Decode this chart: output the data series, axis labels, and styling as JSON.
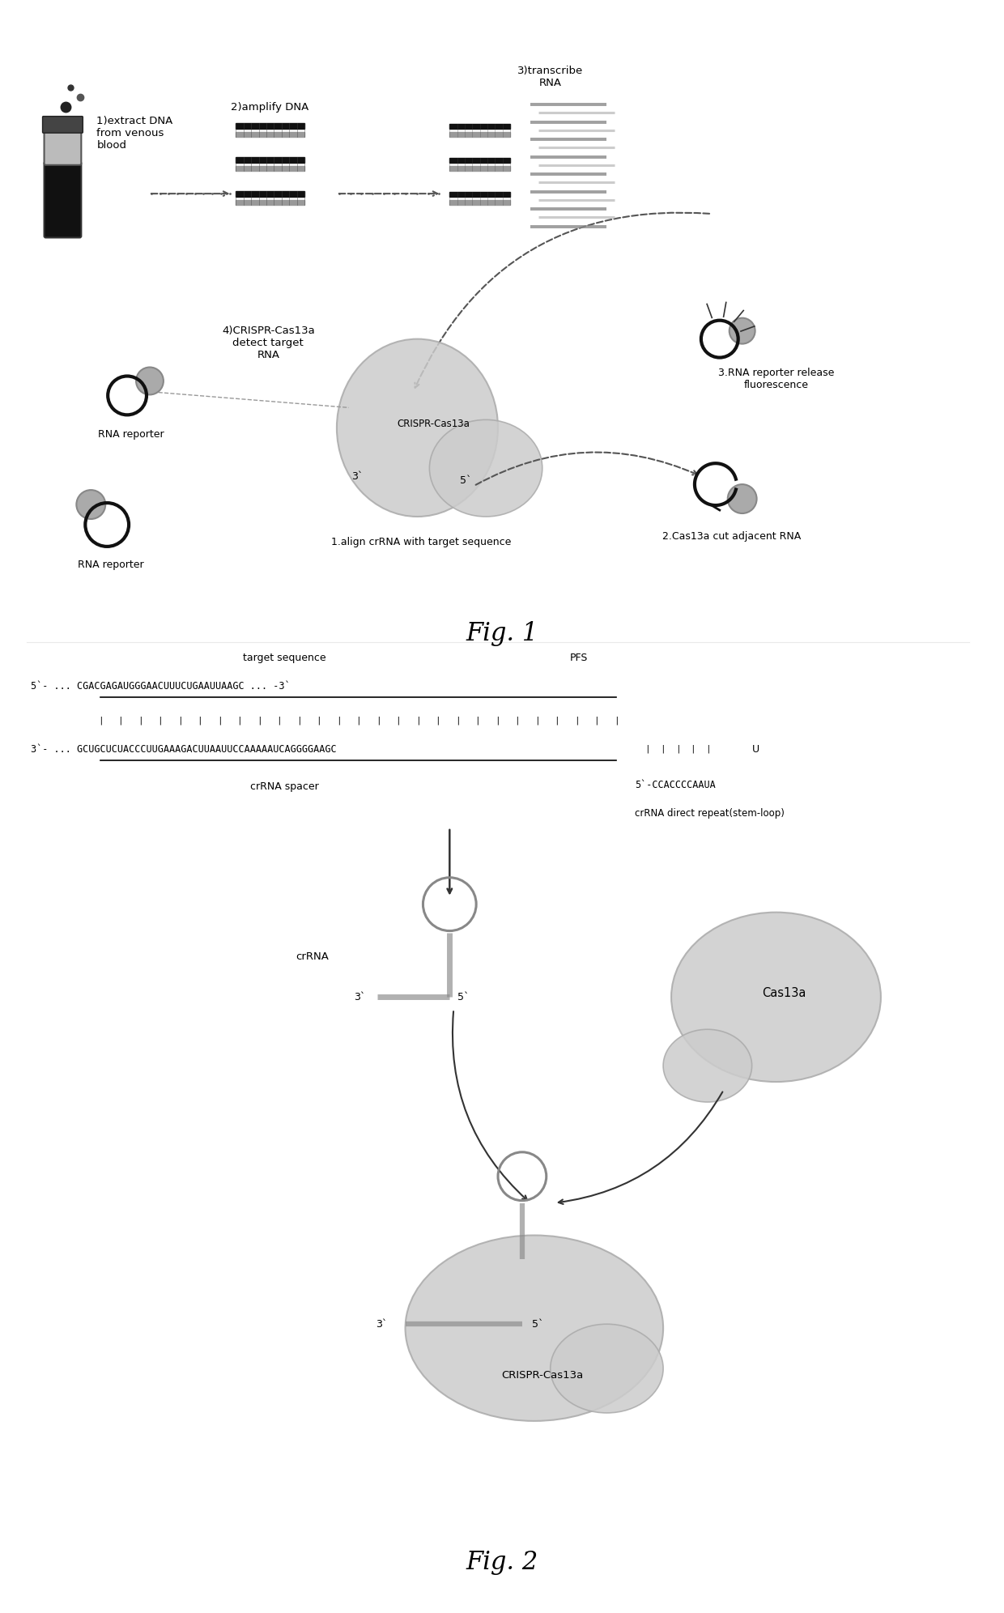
{
  "fig1_title": "Fig. 1",
  "fig2_title": "Fig. 2",
  "background_color": "#ffffff",
  "text_color": "#000000",
  "label_step1": "1)extract DNA\nfrom venous\nblood",
  "label_step2": "2)amplify DNA",
  "label_step3": "3)transcribe\nRNA",
  "label_step4": "4)CRISPR-Cas13a\ndetect target\nRNA",
  "label_crispr": "CRISPR-Cas13a",
  "label_rna_reporter1": "RNA reporter",
  "label_rna_reporter2": "RNA reporter",
  "label_align": "1.align crRNA with target sequence",
  "label_cut": "2.Cas13a cut adjacent RNA",
  "label_release": "3.RNA reporter release\nfluorescence",
  "target_seq": "5`- ... CGACGAGAUGGGAACUUUCUGAAUUAAGC ... -3`",
  "target_seq_label": "target sequence",
  "pfs_label": "PFS",
  "crRNA_seq": "3`- ... GCUGCUCUACCCUUGAAAGACUUAAUUCCAAAAAUCAGGGGAAGC",
  "crRNA_spacer_label": "crRNA spacer",
  "direct_repeat_seq": "5`-CCACCCCAAUA",
  "direct_repeat_label": "crRNA direct repeat(stem-loop)",
  "u_label": "U",
  "crRNA_label": "crRNA",
  "cas13a_label": "Cas13a",
  "crispr_cas13a_label2": "CRISPR-Cas13a"
}
